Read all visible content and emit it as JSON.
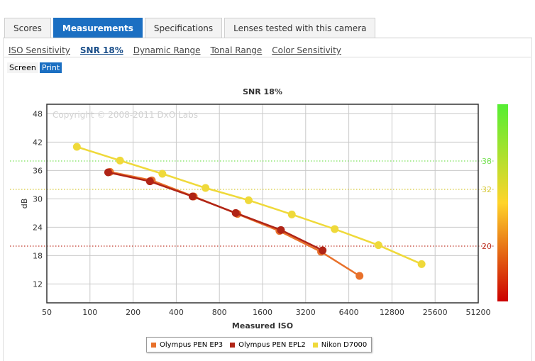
{
  "tabs": [
    {
      "label": "Scores",
      "active": false
    },
    {
      "label": "Measurements",
      "active": true
    },
    {
      "label": "Specifications",
      "active": false
    },
    {
      "label": "Lenses tested with this camera",
      "active": false
    }
  ],
  "sublinks": [
    {
      "label": "ISO Sensitivity",
      "active": false
    },
    {
      "label": "SNR 18%",
      "active": true
    },
    {
      "label": "Dynamic Range",
      "active": false
    },
    {
      "label": "Tonal Range",
      "active": false
    },
    {
      "label": "Color Sensitivity",
      "active": false
    }
  ],
  "modes": [
    {
      "label": "Screen",
      "active": false
    },
    {
      "label": "Print",
      "active": true
    }
  ],
  "chart_data": {
    "type": "line",
    "title": "SNR 18%",
    "xlabel": "Measured ISO",
    "ylabel": "dB",
    "x_scale": "log2",
    "xlim": [
      50,
      51200
    ],
    "ylim": [
      8,
      50
    ],
    "x_ticks": [
      "50",
      "100",
      "200",
      "400",
      "800",
      "1600",
      "3200",
      "6400",
      "12800",
      "25600",
      "51200"
    ],
    "y_ticks": [
      12,
      18,
      24,
      30,
      36,
      42,
      48
    ],
    "grid": true,
    "watermark": "Copyright © 2008-2011 DxO Labs",
    "reference_lines": [
      {
        "y": 38,
        "label": "38",
        "color": "#7be25a"
      },
      {
        "y": 32,
        "label": "32",
        "color": "#d7c93a"
      },
      {
        "y": 20,
        "label": "20",
        "color": "#c0392b"
      }
    ],
    "color_scale": {
      "top": "#55ee33",
      "mid": "#ffd42a",
      "bottom": "#cc0000"
    },
    "legend_position": "bottom",
    "series": [
      {
        "name": "Olympus PEN EP3",
        "color": "#e8712b",
        "x": [
          138,
          270,
          530,
          1070,
          2100,
          4100,
          7600
        ],
        "y": [
          35.7,
          33.9,
          30.5,
          26.8,
          23.2,
          18.8,
          13.7
        ]
      },
      {
        "name": "Olympus PEN EPL2",
        "color": "#b02416",
        "x": [
          134,
          262,
          520,
          1040,
          2150,
          4200
        ],
        "y": [
          35.6,
          33.7,
          30.5,
          27.0,
          23.4,
          19.1
        ]
      },
      {
        "name": "Nikon D7000",
        "color": "#efd93a",
        "x": [
          81,
          162,
          320,
          640,
          1280,
          2560,
          5100,
          10300,
          20600
        ],
        "y": [
          41.0,
          38.1,
          35.3,
          32.3,
          29.7,
          26.7,
          23.6,
          20.2,
          16.2
        ]
      }
    ]
  }
}
